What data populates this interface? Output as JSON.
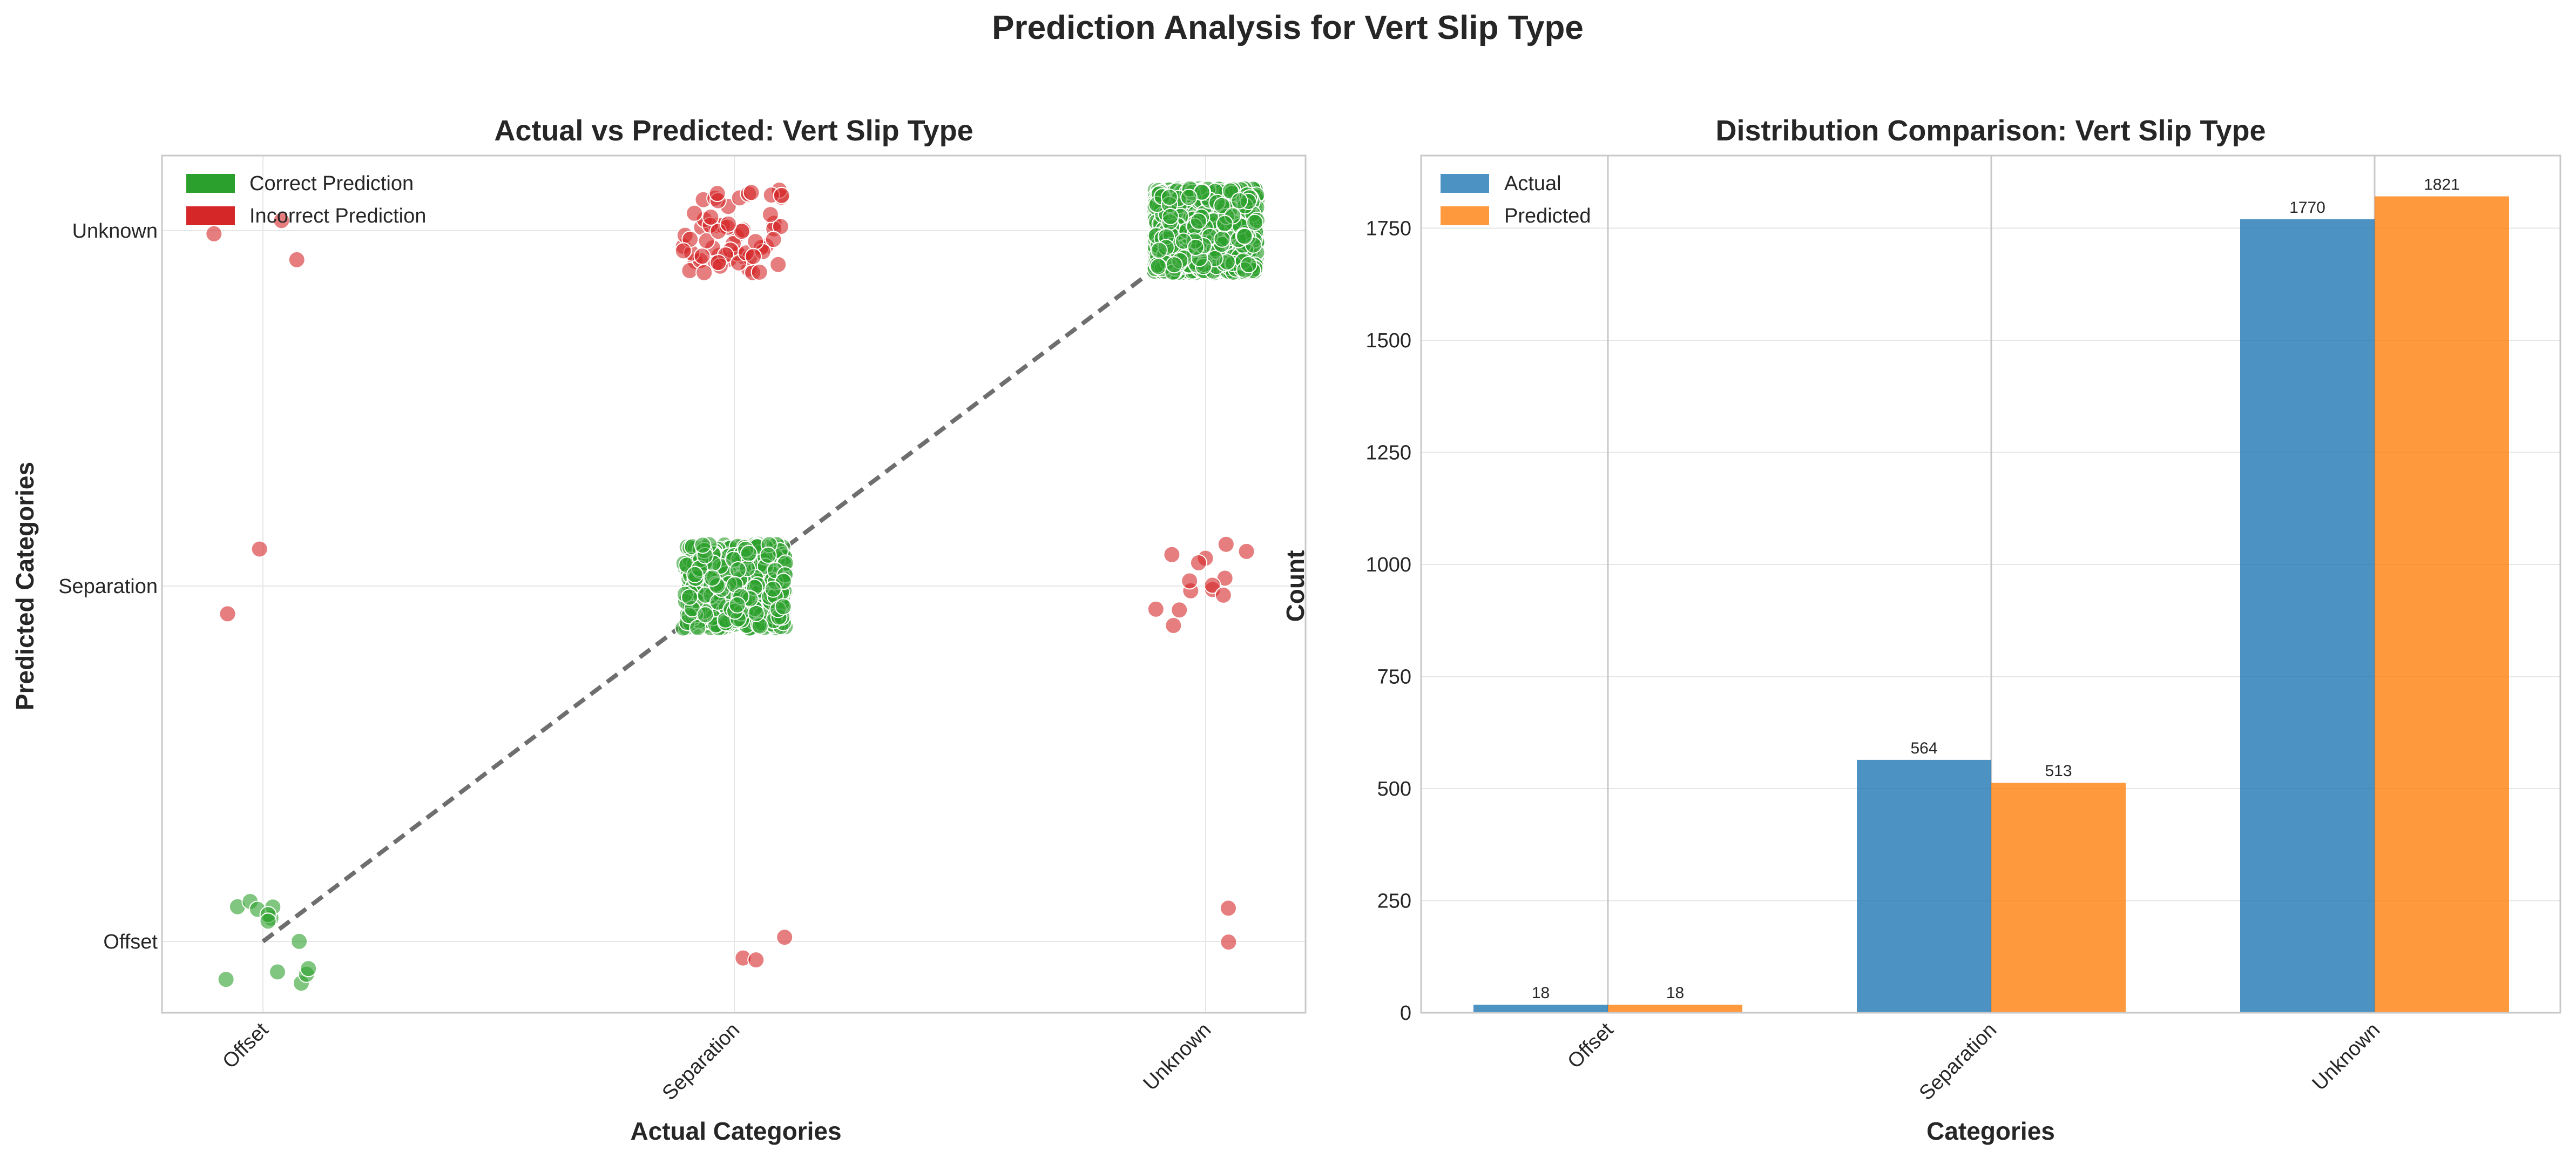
{
  "figure": {
    "suptitle": "Prediction Analysis for  Vert Slip Type"
  },
  "colors": {
    "correct": "#2ca02c",
    "incorrect": "#d62728",
    "actual": "#1f77b4",
    "predicted": "#ff7f0e",
    "diagonal": "#555555",
    "grid": "#e6e6e6",
    "frame": "#c8c8c8"
  },
  "chart_data": [
    {
      "type": "scatter",
      "title": "Actual vs Predicted:  Vert Slip Type",
      "xlabel": "Actual Categories",
      "ylabel": "Predicted Categories",
      "categories": [
        "Offset",
        "Separation",
        "Unknown"
      ],
      "legend": {
        "position": "top-left",
        "entries": [
          "Correct Prediction",
          "Incorrect Prediction"
        ]
      },
      "reference_line": "diagonal y = x (dashed)",
      "grid": true,
      "cells": [
        {
          "actual": "Offset",
          "predicted": "Offset",
          "count": 13,
          "correct": true
        },
        {
          "actual": "Offset",
          "predicted": "Separation",
          "count": 2,
          "correct": false
        },
        {
          "actual": "Offset",
          "predicted": "Unknown",
          "count": 3,
          "correct": false
        },
        {
          "actual": "Separation",
          "predicted": "Offset",
          "count": 3,
          "correct": false
        },
        {
          "actual": "Separation",
          "predicted": "Separation",
          "count": 497,
          "correct": true
        },
        {
          "actual": "Separation",
          "predicted": "Unknown",
          "count": 64,
          "correct": false
        },
        {
          "actual": "Unknown",
          "predicted": "Offset",
          "count": 2,
          "correct": false
        },
        {
          "actual": "Unknown",
          "predicted": "Separation",
          "count": 14,
          "correct": false
        },
        {
          "actual": "Unknown",
          "predicted": "Unknown",
          "count": 1754,
          "correct": true
        }
      ]
    },
    {
      "type": "bar",
      "title": "Distribution Comparison:  Vert Slip Type",
      "xlabel": "Categories",
      "ylabel": "Count",
      "categories": [
        "Offset",
        "Separation",
        "Unknown"
      ],
      "series": [
        {
          "name": "Actual",
          "values": [
            18,
            564,
            1770
          ]
        },
        {
          "name": "Predicted",
          "values": [
            18,
            513,
            1821
          ]
        }
      ],
      "ylim": [
        0,
        1912
      ],
      "yticks": [
        0,
        250,
        500,
        750,
        1000,
        1250,
        1500,
        1750
      ],
      "legend": {
        "position": "top-left"
      },
      "grid": true
    }
  ]
}
